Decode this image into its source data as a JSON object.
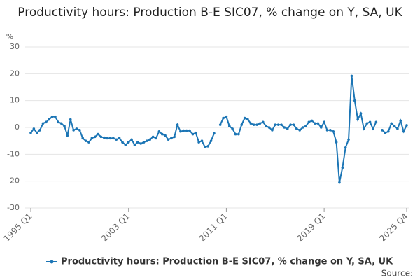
{
  "chart_data": {
    "type": "line",
    "title": "Productivity hours: Production B-E SIC07, % change on Y, SA, UK",
    "y_label": "%",
    "source": "Source:",
    "categories": [
      "1995 Q1",
      null,
      null,
      null,
      null,
      null,
      null,
      null,
      null,
      null,
      null,
      null,
      null,
      null,
      null,
      null,
      null,
      null,
      null,
      null,
      null,
      null,
      null,
      null,
      null,
      null,
      null,
      null,
      null,
      null,
      null,
      null,
      "2003 Q1",
      null,
      null,
      null,
      null,
      null,
      null,
      null,
      null,
      null,
      null,
      null,
      null,
      null,
      null,
      null,
      null,
      null,
      null,
      null,
      null,
      null,
      null,
      null,
      null,
      null,
      null,
      null,
      null,
      null,
      null,
      null,
      "2011 Q1",
      null,
      null,
      null,
      null,
      null,
      null,
      null,
      null,
      null,
      null,
      null,
      null,
      null,
      null,
      null,
      null,
      null,
      null,
      null,
      null,
      null,
      null,
      null,
      null,
      null,
      null,
      null,
      null,
      null,
      null,
      null,
      "2019 Q1",
      null,
      null,
      null,
      null,
      null,
      null,
      null,
      null,
      null,
      null,
      null,
      null,
      null,
      null,
      null,
      null,
      null,
      null,
      null,
      null,
      null,
      null,
      null,
      null,
      null,
      null,
      "2025 Q4"
    ],
    "series": [
      {
        "name": "Productivity hours: Production B-E SIC07, % change on Y, SA, UK",
        "color": "#1b75b5",
        "values": [
          -2,
          -0.5,
          -2,
          -1,
          1.5,
          2,
          3,
          4,
          4,
          2,
          1.5,
          0.5,
          -3,
          3,
          -1,
          -0.5,
          -1,
          -4,
          -5,
          -5.5,
          -4,
          -3.5,
          -2.5,
          -3.5,
          -3.8,
          -4,
          -4,
          -4,
          -4.5,
          -4,
          -5.5,
          -6.5,
          -5.5,
          -4.5,
          -6.5,
          -5.5,
          -6,
          -5.5,
          -5,
          -4.5,
          -3.5,
          -4,
          -1.5,
          -2.5,
          -3,
          -4.5,
          -4,
          -3.5,
          1,
          -1.5,
          -1.2,
          -1.2,
          -1.2,
          -2.5,
          -2,
          -5.5,
          -5,
          -7.3,
          -7,
          -5,
          -2.2,
          null,
          1,
          3.5,
          4,
          0.5,
          -0.5,
          -2.5,
          -2.5,
          1,
          3.5,
          3,
          1.5,
          1,
          1,
          1.5,
          2,
          0.5,
          0,
          -1,
          1,
          1,
          1,
          0,
          -0.5,
          1,
          1,
          -0.5,
          -1,
          0,
          0.5,
          2,
          2.5,
          1.5,
          1.5,
          0,
          2,
          -1,
          -1,
          -1.5,
          -5.5,
          -20.5,
          -15,
          -7.5,
          -4.5,
          19.2,
          10,
          3,
          5.2,
          -0.5,
          1.5,
          2,
          -0.5,
          2,
          null,
          -1,
          -2,
          -1.5,
          1.5,
          0.5,
          -0.5,
          2.5,
          -1.5,
          0.8
        ]
      }
    ],
    "ylim": [
      -30,
      30
    ],
    "yticks": [
      30,
      20,
      10,
      0,
      -10,
      -20,
      -30
    ],
    "grid": true,
    "legend": "bottom"
  }
}
